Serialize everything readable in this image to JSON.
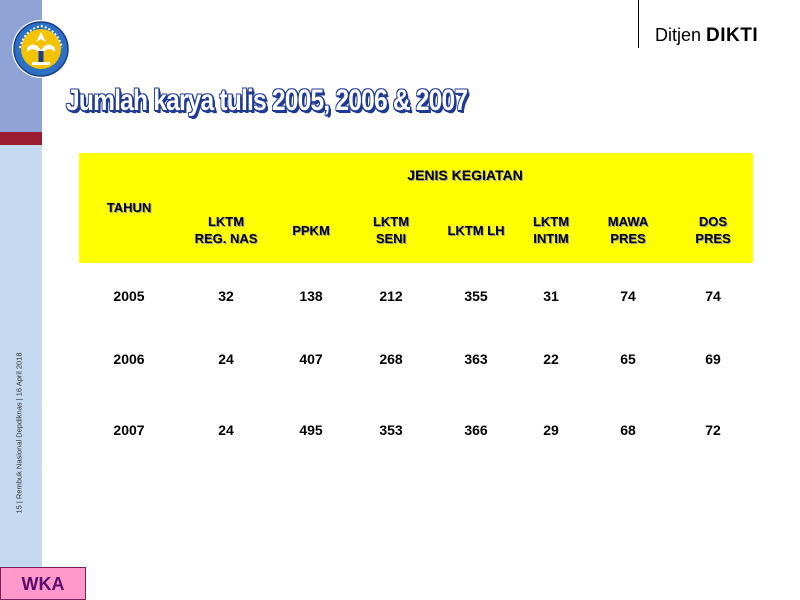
{
  "header": {
    "brand_prefix": "Ditjen",
    "brand_name": "DIKTI"
  },
  "title": "Jumlah karya tulis 2005,  2006  &  2007",
  "footer_vertical": "15 | Rembuk Nasional Depdiknas | 16  April 2018",
  "badge": "WKA",
  "table": {
    "year_header": "TAHUN",
    "group_header": "JENIS KEGIATAN",
    "columns": [
      {
        "line1": "LKTM",
        "line2": "REG. NAS"
      },
      {
        "line1": "PPKM",
        "line2": ""
      },
      {
        "line1": "LKTM",
        "line2": "SENI"
      },
      {
        "line1": "LKTM LH",
        "line2": ""
      },
      {
        "line1": "LKTM",
        "line2": "INTIM"
      },
      {
        "line1": "MAWA",
        "line2": "PRES"
      },
      {
        "line1": "DOS",
        "line2": "PRES"
      }
    ],
    "rows": [
      {
        "year": "2005",
        "values": [
          "32",
          "138",
          "212",
          "355",
          "31",
          "74",
          "74"
        ]
      },
      {
        "year": "2006",
        "values": [
          "24",
          "407",
          "268",
          "363",
          "22",
          "65",
          "69"
        ]
      },
      {
        "year": "2007",
        "values": [
          "24",
          "495",
          "353",
          "366",
          "29",
          "68",
          "72"
        ]
      }
    ]
  },
  "colors": {
    "header_fill": "#ffff00",
    "title_outline": "#1f3a93",
    "left_bar": "#c5d9f1",
    "left_bar_top": "#8fa3d6",
    "accent": "#9b1b30",
    "badge_fill": "#ff99cc"
  },
  "icons": {
    "logo": "tut-wuri-handayani-emblem"
  }
}
